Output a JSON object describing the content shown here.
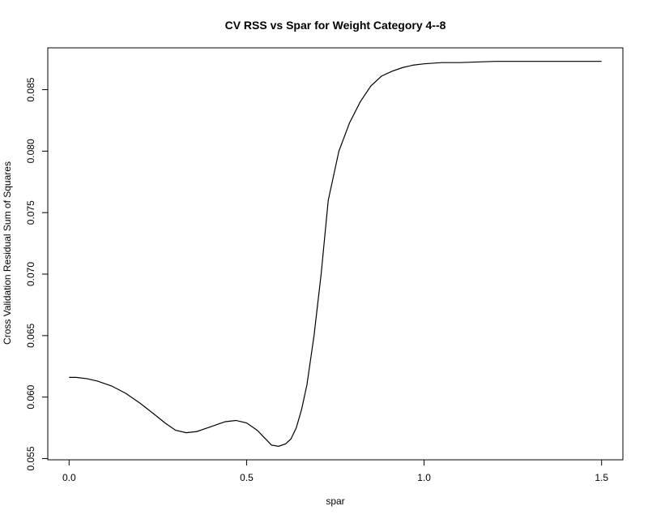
{
  "chart_data": {
    "type": "line",
    "title": "CV RSS vs Spar for Weight Category 4--8",
    "xlabel": "spar",
    "ylabel": "Cross Validation Residual Sum of Squares",
    "xlim": [
      -0.06,
      1.56
    ],
    "ylim": [
      0.0549,
      0.0884
    ],
    "x_ticks": [
      0.0,
      0.5,
      1.0,
      1.5
    ],
    "x_tick_labels": [
      "0.0",
      "0.5",
      "1.0",
      "1.5"
    ],
    "y_ticks": [
      0.055,
      0.06,
      0.065,
      0.07,
      0.075,
      0.08,
      0.085
    ],
    "y_tick_labels": [
      "0.055",
      "0.060",
      "0.065",
      "0.070",
      "0.075",
      "0.080",
      "0.085"
    ],
    "grid": false,
    "line_color": "#000000",
    "series": [
      {
        "x": [
          0.0,
          0.02,
          0.05,
          0.08,
          0.12,
          0.16,
          0.2,
          0.24,
          0.27,
          0.3,
          0.33,
          0.36,
          0.4,
          0.44,
          0.47,
          0.5,
          0.53,
          0.55,
          0.57,
          0.59,
          0.61,
          0.625,
          0.64,
          0.655,
          0.67,
          0.69,
          0.71,
          0.73,
          0.76,
          0.79,
          0.82,
          0.85,
          0.88,
          0.91,
          0.94,
          0.97,
          1.0,
          1.05,
          1.1,
          1.2,
          1.3,
          1.4,
          1.5
        ],
        "y": [
          0.0616,
          0.0616,
          0.0615,
          0.0613,
          0.0609,
          0.0603,
          0.0595,
          0.0586,
          0.0579,
          0.0573,
          0.0571,
          0.0572,
          0.0576,
          0.058,
          0.0581,
          0.0579,
          0.0573,
          0.0567,
          0.0561,
          0.056,
          0.0562,
          0.0566,
          0.0575,
          0.059,
          0.061,
          0.065,
          0.07,
          0.076,
          0.08,
          0.0823,
          0.084,
          0.0853,
          0.0861,
          0.0865,
          0.0868,
          0.087,
          0.0871,
          0.0872,
          0.0872,
          0.0873,
          0.0873,
          0.0873,
          0.0873
        ]
      }
    ]
  }
}
